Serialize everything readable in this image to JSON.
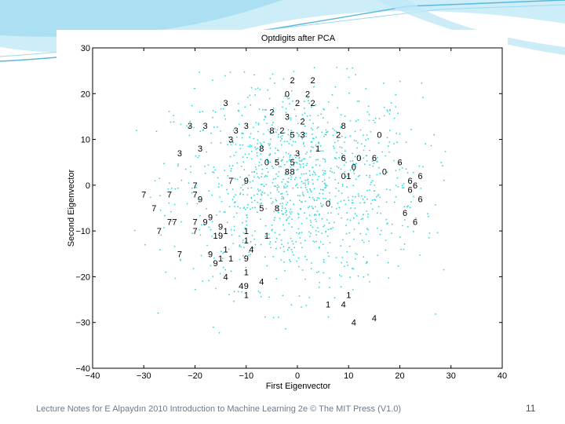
{
  "footer": {
    "text": "Lecture Notes for E Alpaydın 2010 Introduction to Machine Learning 2e © The MIT Press (V1.0)",
    "page_number": "11"
  },
  "colors": {
    "points": "#33d6d6",
    "digit_labels": "#000000",
    "decor_light": "#cdeef8",
    "decor_dark": "#5ab8dc"
  },
  "chart_data": {
    "type": "scatter",
    "title": "Optdigits after PCA",
    "xlabel": "First Eigenvector",
    "ylabel": "Second Eigenvector",
    "xlim": [
      -40,
      40
    ],
    "ylim": [
      -40,
      30
    ],
    "xticks": [
      -40,
      -30,
      -20,
      -10,
      0,
      10,
      20,
      30,
      40
    ],
    "yticks": [
      -40,
      -30,
      -20,
      -10,
      0,
      10,
      20,
      30
    ],
    "grid": false,
    "labels": [
      {
        "text": "2",
        "x": -1,
        "y": 23
      },
      {
        "text": "2",
        "x": 3,
        "y": 23
      },
      {
        "text": "0",
        "x": -2,
        "y": 20
      },
      {
        "text": "2",
        "x": 2,
        "y": 20
      },
      {
        "text": "2",
        "x": 0,
        "y": 18
      },
      {
        "text": "2",
        "x": 3,
        "y": 18
      },
      {
        "text": "2",
        "x": -5,
        "y": 16
      },
      {
        "text": "3",
        "x": -2,
        "y": 15
      },
      {
        "text": "2",
        "x": 1,
        "y": 14
      },
      {
        "text": "3",
        "x": -14,
        "y": 18
      },
      {
        "text": "3",
        "x": -21,
        "y": 13
      },
      {
        "text": "3",
        "x": -18,
        "y": 13
      },
      {
        "text": "3",
        "x": -12,
        "y": 12
      },
      {
        "text": "3",
        "x": -10,
        "y": 13
      },
      {
        "text": "8",
        "x": -5,
        "y": 12
      },
      {
        "text": "2",
        "x": -3,
        "y": 12
      },
      {
        "text": "5",
        "x": -1,
        "y": 11
      },
      {
        "text": "3",
        "x": 1,
        "y": 11
      },
      {
        "text": "8",
        "x": 9,
        "y": 13
      },
      {
        "text": "2",
        "x": 8,
        "y": 11
      },
      {
        "text": "0",
        "x": 16,
        "y": 11
      },
      {
        "text": "3",
        "x": -13,
        "y": 10
      },
      {
        "text": "3",
        "x": -19,
        "y": 8
      },
      {
        "text": "3",
        "x": -23,
        "y": 7
      },
      {
        "text": "8",
        "x": -7,
        "y": 8
      },
      {
        "text": "3",
        "x": 0,
        "y": 7
      },
      {
        "text": "1",
        "x": 4,
        "y": 8
      },
      {
        "text": "6",
        "x": 9,
        "y": 6
      },
      {
        "text": "0",
        "x": -6,
        "y": 5
      },
      {
        "text": "5",
        "x": -4,
        "y": 5
      },
      {
        "text": "5",
        "x": -1,
        "y": 5
      },
      {
        "text": "0",
        "x": 12,
        "y": 6
      },
      {
        "text": "6",
        "x": 15,
        "y": 6
      },
      {
        "text": "6",
        "x": 20,
        "y": 5
      },
      {
        "text": "8",
        "x": -2,
        "y": 3
      },
      {
        "text": "8",
        "x": -1,
        "y": 3
      },
      {
        "text": "0",
        "x": 9,
        "y": 2
      },
      {
        "text": "1",
        "x": 10,
        "y": 2
      },
      {
        "text": "0",
        "x": 11,
        "y": 4
      },
      {
        "text": "0",
        "x": 17,
        "y": 3
      },
      {
        "text": "6",
        "x": 24,
        "y": 2
      },
      {
        "text": "6",
        "x": 22,
        "y": 1
      },
      {
        "text": "6",
        "x": 23,
        "y": 0
      },
      {
        "text": "6",
        "x": 22,
        "y": -1
      },
      {
        "text": "6",
        "x": 24,
        "y": -3
      },
      {
        "text": "6",
        "x": 21,
        "y": -6
      },
      {
        "text": "6",
        "x": 23,
        "y": -8
      },
      {
        "text": "7",
        "x": -20,
        "y": 0
      },
      {
        "text": "7",
        "x": -13,
        "y": 1
      },
      {
        "text": "9",
        "x": -10,
        "y": 1
      },
      {
        "text": "7",
        "x": -30,
        "y": -2
      },
      {
        "text": "7",
        "x": -25,
        "y": -2
      },
      {
        "text": "7",
        "x": -20,
        "y": -2
      },
      {
        "text": "9",
        "x": -19,
        "y": -3
      },
      {
        "text": "7",
        "x": -28,
        "y": -5
      },
      {
        "text": "5",
        "x": -7,
        "y": -5
      },
      {
        "text": "8",
        "x": -4,
        "y": -5
      },
      {
        "text": "0",
        "x": 6,
        "y": -4
      },
      {
        "text": "7",
        "x": -25,
        "y": -8
      },
      {
        "text": "7",
        "x": -24,
        "y": -8
      },
      {
        "text": "7",
        "x": -20,
        "y": -8
      },
      {
        "text": "9",
        "x": -18,
        "y": -8
      },
      {
        "text": "9",
        "x": -17,
        "y": -7
      },
      {
        "text": "9",
        "x": -15,
        "y": -9
      },
      {
        "text": "7",
        "x": -27,
        "y": -10
      },
      {
        "text": "7",
        "x": -20,
        "y": -10
      },
      {
        "text": "1",
        "x": -10,
        "y": -10
      },
      {
        "text": "1",
        "x": -16,
        "y": -11
      },
      {
        "text": "9",
        "x": -15,
        "y": -11
      },
      {
        "text": "1",
        "x": -14,
        "y": -10
      },
      {
        "text": "1",
        "x": -10,
        "y": -12
      },
      {
        "text": "1",
        "x": -6,
        "y": -11
      },
      {
        "text": "1",
        "x": -14,
        "y": -14
      },
      {
        "text": "4",
        "x": -9,
        "y": -14
      },
      {
        "text": "7",
        "x": -23,
        "y": -15
      },
      {
        "text": "9",
        "x": -17,
        "y": -15
      },
      {
        "text": "9",
        "x": -16,
        "y": -17
      },
      {
        "text": "1",
        "x": -15,
        "y": -16
      },
      {
        "text": "1",
        "x": -13,
        "y": -16
      },
      {
        "text": "9",
        "x": -10,
        "y": -16
      },
      {
        "text": "1",
        "x": -10,
        "y": -19
      },
      {
        "text": "4",
        "x": -14,
        "y": -20
      },
      {
        "text": "4",
        "x": -7,
        "y": -21
      },
      {
        "text": "4",
        "x": -11,
        "y": -22
      },
      {
        "text": "9",
        "x": -10,
        "y": -22
      },
      {
        "text": "1",
        "x": -10,
        "y": -24
      },
      {
        "text": "1",
        "x": 6,
        "y": -26
      },
      {
        "text": "4",
        "x": 9,
        "y": -26
      },
      {
        "text": "1",
        "x": 10,
        "y": -24
      },
      {
        "text": "4",
        "x": 15,
        "y": -29
      },
      {
        "text": "4",
        "x": 11,
        "y": -30
      }
    ]
  }
}
